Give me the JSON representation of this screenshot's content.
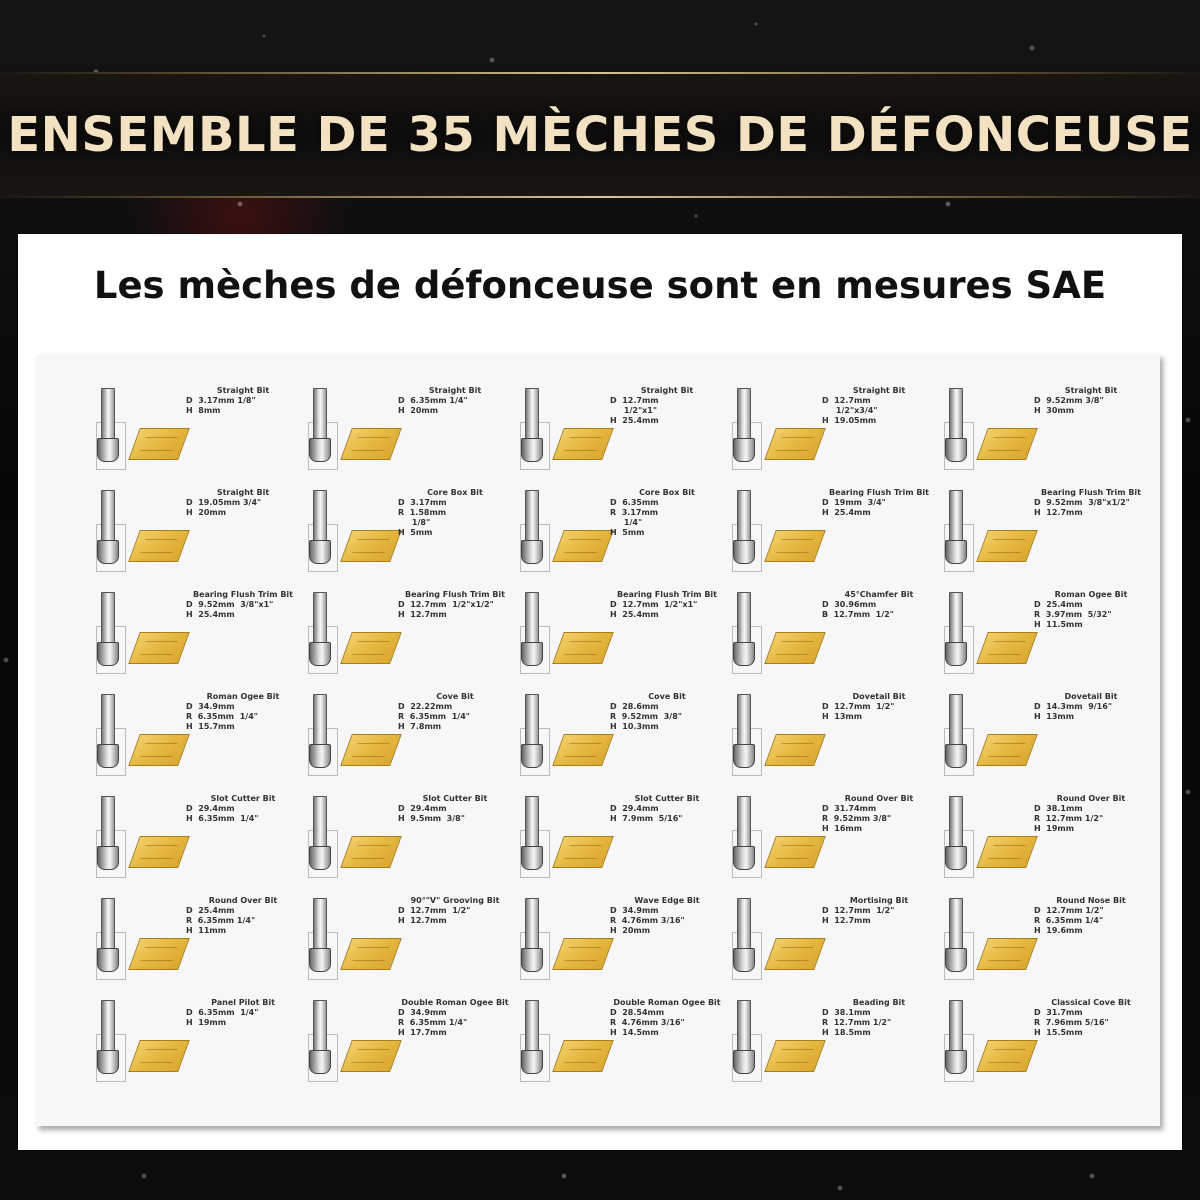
{
  "header": {
    "title": "ENSEMBLE DE 35 MÈCHES DE DÉFONCEUSE"
  },
  "panel": {
    "subtitle": "Les mèches de défonceuse sont en mesures SAE"
  },
  "colors": {
    "title_gold": "#f2e2c2",
    "wood": "#e5b73f",
    "background": "#0a0a0a"
  },
  "bits": [
    {
      "name": "Straight Bit",
      "specs": [
        "D  3.17mm 1/8\"",
        "H  8mm"
      ]
    },
    {
      "name": "Straight Bit",
      "specs": [
        "D  6.35mm 1/4\"",
        "H  20mm"
      ]
    },
    {
      "name": "Straight Bit",
      "specs": [
        "D  12.7mm",
        "     1/2\"x1\"",
        "H  25.4mm"
      ]
    },
    {
      "name": "Straight Bit",
      "specs": [
        "D  12.7mm",
        "     1/2\"x3/4\"",
        "H  19.05mm"
      ]
    },
    {
      "name": "Straight Bit",
      "specs": [
        "D  9.52mm 3/8\"",
        "H  30mm"
      ]
    },
    {
      "name": "Straight Bit",
      "specs": [
        "D  19.05mm 3/4\"",
        "H  20mm"
      ]
    },
    {
      "name": "Core Box Bit",
      "specs": [
        "D  3.17mm",
        "R  1.58mm",
        "     1/8\"",
        "H  5mm"
      ]
    },
    {
      "name": "Core Box Bit",
      "specs": [
        "D  6.35mm",
        "R  3.17mm",
        "     1/4\"",
        "H  5mm"
      ]
    },
    {
      "name": "Bearing Flush Trim Bit",
      "specs": [
        "D  19mm  3/4\"",
        "H  25.4mm"
      ]
    },
    {
      "name": "Bearing Flush Trim Bit",
      "specs": [
        "D  9.52mm  3/8\"x1/2\"",
        "H  12.7mm"
      ]
    },
    {
      "name": "Bearing Flush Trim Bit",
      "specs": [
        "D  9.52mm  3/8\"x1\"",
        "H  25.4mm"
      ]
    },
    {
      "name": "Bearing Flush Trim Bit",
      "specs": [
        "D  12.7mm  1/2\"x1/2\"",
        "H  12.7mm"
      ]
    },
    {
      "name": "Bearing Flush Trim Bit",
      "specs": [
        "D  12.7mm  1/2\"x1\"",
        "H  25.4mm"
      ]
    },
    {
      "name": "45°Chamfer Bit",
      "specs": [
        "D  30.96mm",
        "B  12.7mm  1/2\""
      ]
    },
    {
      "name": "Roman Ogee Bit",
      "specs": [
        "D  25.4mm",
        "R  3.97mm  5/32\"",
        "H  11.5mm"
      ]
    },
    {
      "name": "Roman Ogee Bit",
      "specs": [
        "D  34.9mm",
        "R  6.35mm  1/4\"",
        "H  15.7mm"
      ]
    },
    {
      "name": "Cove Bit",
      "specs": [
        "D  22.22mm",
        "R  6.35mm  1/4\"",
        "H  7.8mm"
      ]
    },
    {
      "name": "Cove Bit",
      "specs": [
        "D  28.6mm",
        "R  9.52mm  3/8\"",
        "H  10.3mm"
      ]
    },
    {
      "name": "Dovetail Bit",
      "specs": [
        "D  12.7mm  1/2\"",
        "H  13mm"
      ]
    },
    {
      "name": "Dovetail Bit",
      "specs": [
        "D  14.3mm  9/16\"",
        "H  13mm"
      ]
    },
    {
      "name": "Slot Cutter Bit",
      "specs": [
        "D  29.4mm",
        "H  6.35mm  1/4\""
      ]
    },
    {
      "name": "Slot Cutter Bit",
      "specs": [
        "D  29.4mm",
        "H  9.5mm  3/8\""
      ]
    },
    {
      "name": "Slot Cutter Bit",
      "specs": [
        "D  29.4mm",
        "H  7.9mm  5/16\""
      ]
    },
    {
      "name": "Round Over Bit",
      "specs": [
        "D  31.74mm",
        "R  9.52mm 3/8\"",
        "H  16mm"
      ]
    },
    {
      "name": "Round Over Bit",
      "specs": [
        "D  38.1mm",
        "R  12.7mm 1/2\"",
        "H  19mm"
      ]
    },
    {
      "name": "Round Over Bit",
      "specs": [
        "D  25.4mm",
        "R  6.35mm 1/4\"",
        "H  11mm"
      ]
    },
    {
      "name": "90°\"V\" Grooving Bit",
      "specs": [
        "D  12.7mm  1/2\"",
        "H  12.7mm"
      ]
    },
    {
      "name": "Wave Edge Bit",
      "specs": [
        "D  34.9mm",
        "R  4.76mm 3/16\"",
        "H  20mm"
      ]
    },
    {
      "name": "Mortising Bit",
      "specs": [
        "D  12.7mm  1/2\"",
        "H  12.7mm"
      ]
    },
    {
      "name": "Round Nose Bit",
      "specs": [
        "D  12.7mm 1/2\"",
        "R  6.35mm 1/4\"",
        "H  19.6mm"
      ]
    },
    {
      "name": "Panel Pilot Bit",
      "specs": [
        "D  6.35mm  1/4\"",
        "H  19mm"
      ]
    },
    {
      "name": "Double Roman Ogee Bit",
      "specs": [
        "D  34.9mm",
        "R  6.35mm 1/4\"",
        "H  17.7mm"
      ]
    },
    {
      "name": "Double Roman Ogee Bit",
      "specs": [
        "D  28.54mm",
        "R  4.76mm 3/16\"",
        "H  14.5mm"
      ]
    },
    {
      "name": "Beading Bit",
      "specs": [
        "D  38.1mm",
        "R  12.7mm 1/2\"",
        "H  18.5mm"
      ]
    },
    {
      "name": "Classical Cove Bit",
      "specs": [
        "D  31.7mm",
        "R  7.96mm 5/16\"",
        "H  15.5mm"
      ]
    }
  ]
}
